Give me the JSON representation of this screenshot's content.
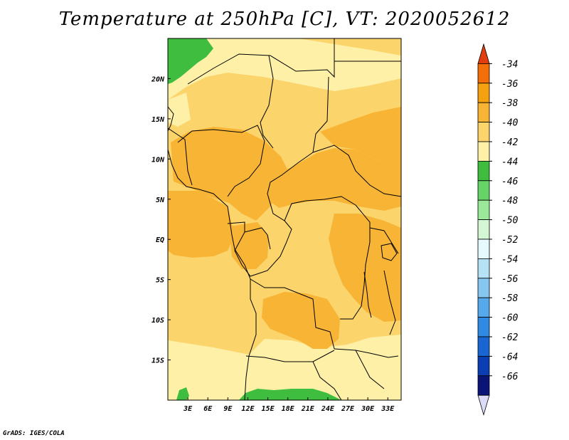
{
  "title": "Temperature at 250hPa [C], VT: 2020052612",
  "credit": "GrADS: IGES/COLA",
  "map": {
    "lon_labels": [
      "3E",
      "6E",
      "9E",
      "12E",
      "15E",
      "18E",
      "21E",
      "24E",
      "27E",
      "30E",
      "33E"
    ],
    "lat_labels": [
      "20N",
      "15N",
      "10N",
      "5N",
      "EQ",
      "5S",
      "10S",
      "15S"
    ],
    "lon_range": [
      0,
      35
    ],
    "lat_range": [
      -20,
      25
    ]
  },
  "colorbar": {
    "labels": [
      "-34",
      "-36",
      "-38",
      "-40",
      "-42",
      "-44",
      "-46",
      "-48",
      "-50",
      "-52",
      "-54",
      "-56",
      "-58",
      "-60",
      "-62",
      "-64",
      "-66"
    ],
    "colors": [
      "#e23d0e",
      "#f46f0a",
      "#f5a010",
      "#f8b535",
      "#fbd46c",
      "#fff0a8",
      "#3ebd3e",
      "#65d365",
      "#9be89b",
      "#d5f6d5",
      "#e6fafd",
      "#b6e2f6",
      "#86c7f0",
      "#56a9ea",
      "#2e8ae2",
      "#1965d1",
      "#0c3eb3",
      "#0a1477",
      "#dcdcf8"
    ]
  },
  "fill_colors": {
    "t42": "#fff0a8",
    "t40": "#fbd46c",
    "t38": "#f8b535",
    "t44": "#3ebd3e"
  }
}
